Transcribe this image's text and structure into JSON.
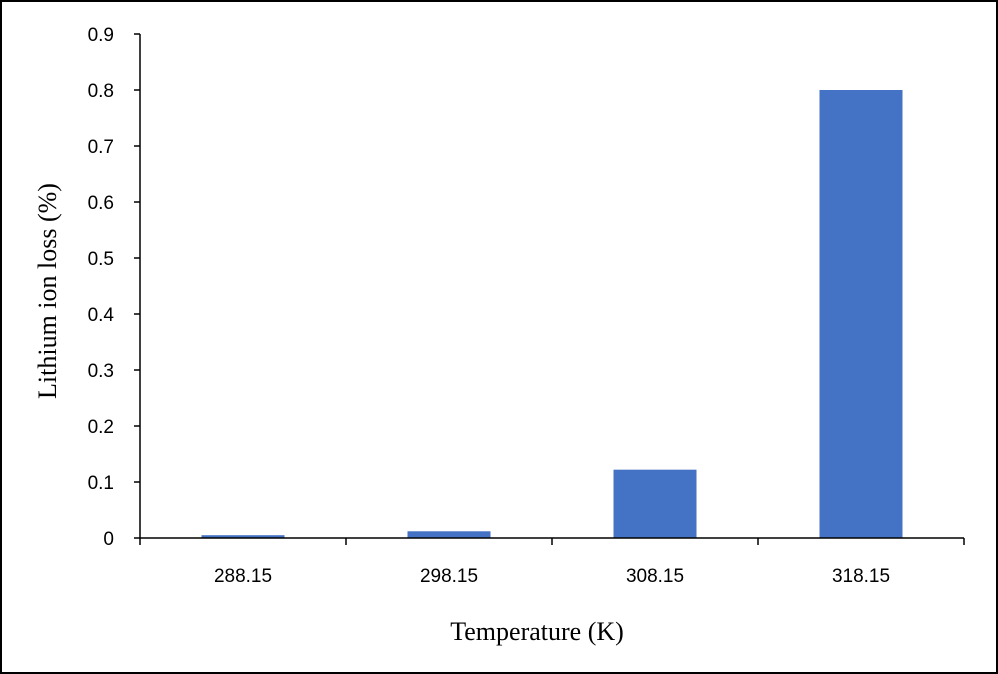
{
  "chart_data": {
    "type": "bar",
    "title": "",
    "xlabel": "Temperature (K)",
    "ylabel": "Lithium ion loss (%)",
    "categories": [
      "288.15",
      "298.15",
      "308.15",
      "318.15"
    ],
    "values": [
      0.005,
      0.012,
      0.122,
      0.8
    ],
    "ylim": [
      0,
      0.9
    ],
    "yticks": [
      "0",
      "0.1",
      "0.2",
      "0.3",
      "0.4",
      "0.5",
      "0.6",
      "0.7",
      "0.8",
      "0.9"
    ],
    "grid": false,
    "legend": "none",
    "bar_color": "#4472C4"
  }
}
